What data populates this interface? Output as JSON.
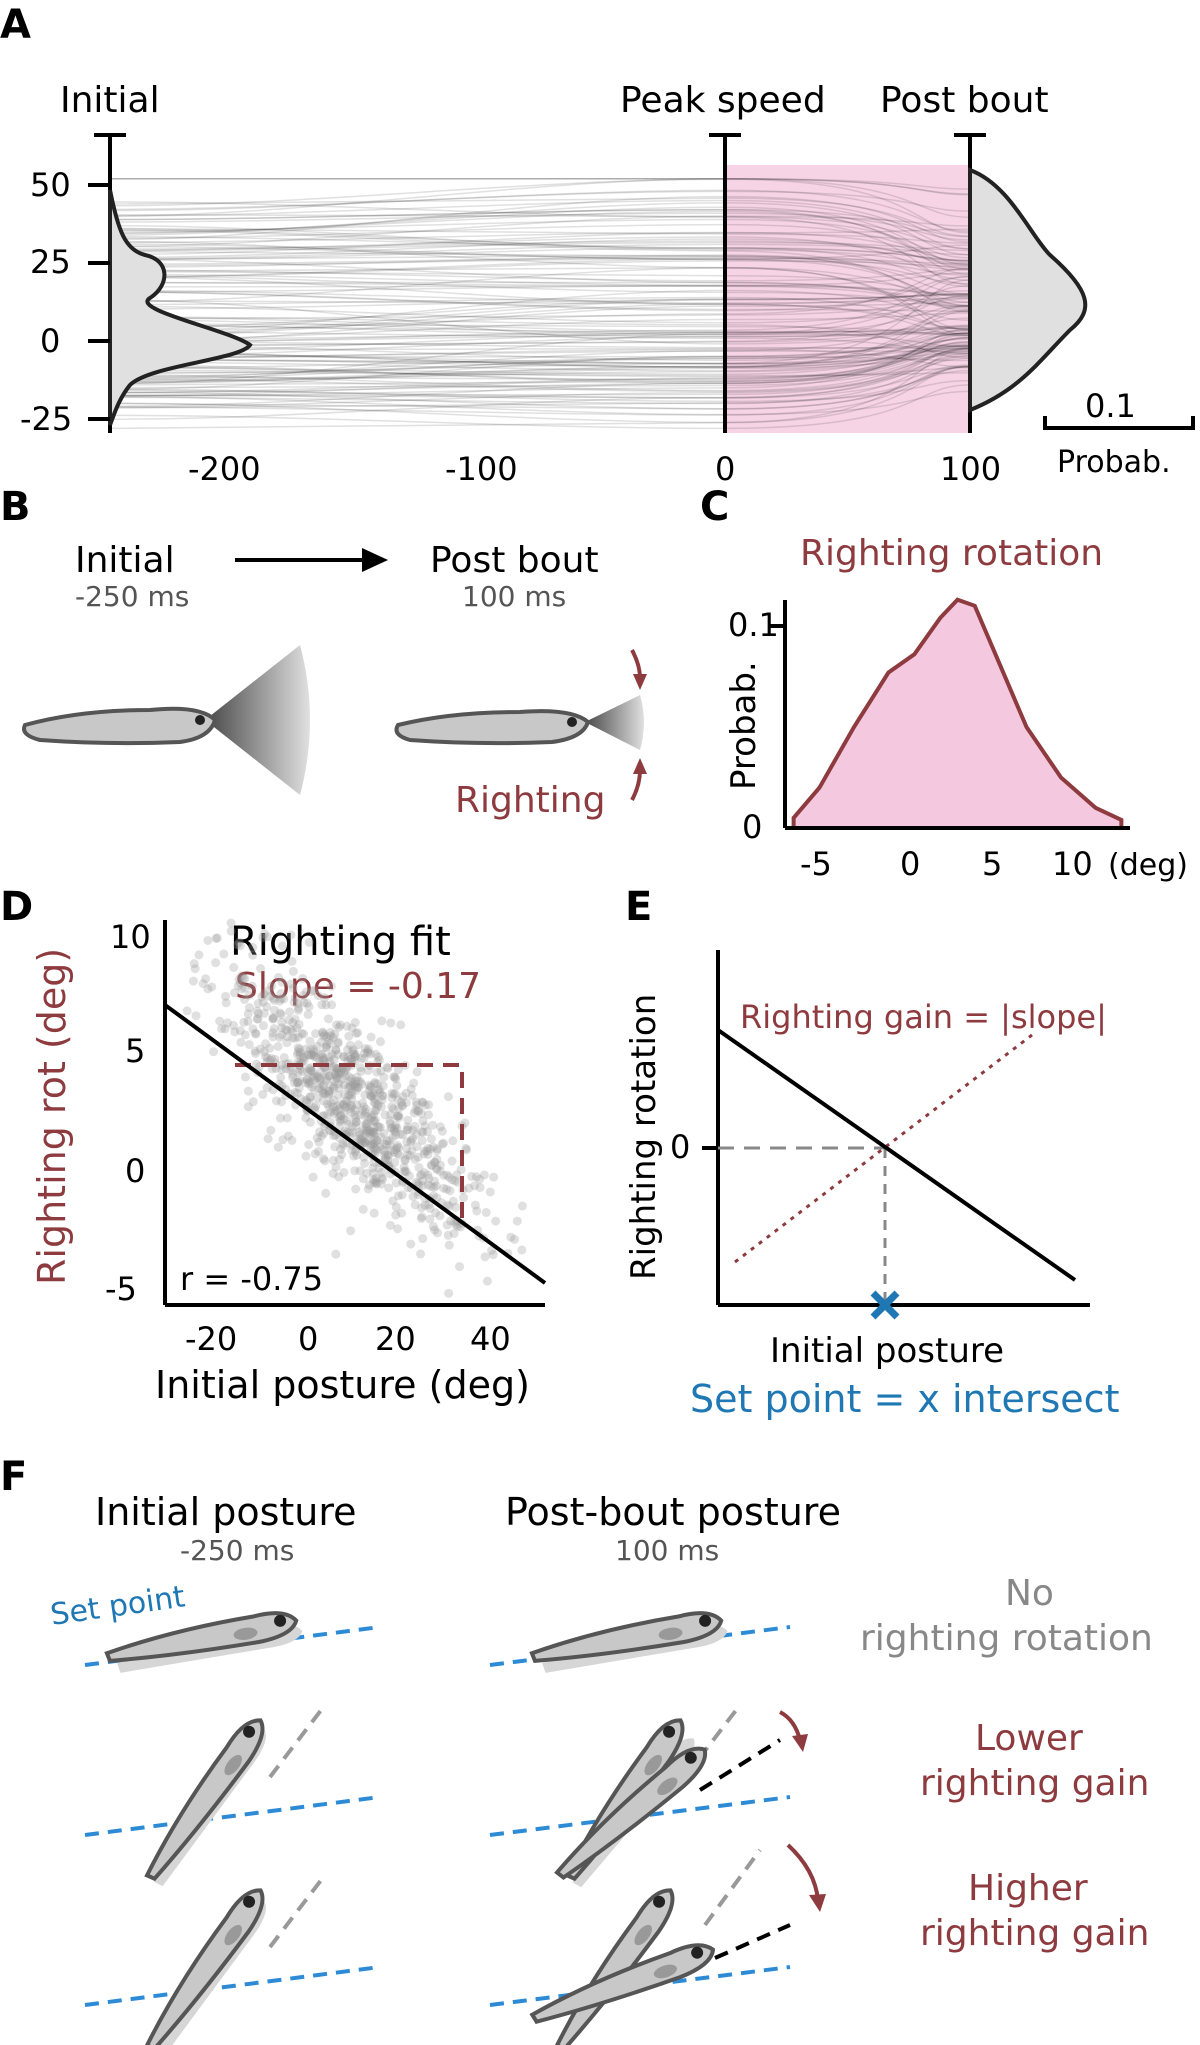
{
  "colors": {
    "red": "#8e3b3f",
    "pink": "#f4c9e0",
    "blue": "#2d8bd6",
    "grey": "#808080"
  },
  "panelA": {
    "letter": "A",
    "labels": {
      "initial": "Initial",
      "peak": "Peak speed",
      "post": "Post bout"
    },
    "yticks": [
      "50",
      "25",
      "0",
      "-25"
    ],
    "xticks": [
      "-200",
      "-100",
      "0",
      "100"
    ],
    "scale_value": "0.1",
    "scale_label": "Probab."
  },
  "panelB": {
    "letter": "B",
    "initial": "Initial",
    "initial_time": "-250 ms",
    "post": "Post bout",
    "post_time": "100 ms",
    "righting": "Righting"
  },
  "panelC": {
    "letter": "C",
    "title": "Righting rotation",
    "ylabel": "Probab.",
    "yticks": [
      "0.1",
      "0"
    ],
    "xticks": [
      "-5",
      "0",
      "5",
      "10"
    ],
    "xunit": "(deg)"
  },
  "panelD": {
    "letter": "D",
    "title": "Righting fit",
    "slope": "Slope = -0.17",
    "r": "r = -0.75",
    "ylabel": "Righting rot (deg)",
    "xlabel": "Initial posture (deg)",
    "yticks": [
      "10",
      "5",
      "0",
      "-5"
    ],
    "xticks": [
      "-20",
      "0",
      "20",
      "40"
    ]
  },
  "panelE": {
    "letter": "E",
    "gain": "Righting gain = |slope|",
    "ylabel": "Righting rotation",
    "ytick": "0",
    "xlabel": "Initial posture",
    "setpoint": "Set point = x intersect"
  },
  "panelF": {
    "letter": "F",
    "initial": "Initial posture",
    "initial_time": "-250 ms",
    "post": "Post-bout posture",
    "post_time": "100 ms",
    "setpoint": "Set point",
    "row1_a": "No",
    "row1_b": "righting rotation",
    "row2_a": "Lower",
    "row2_b": "righting gain",
    "row3_a": "Higher",
    "row3_b": "righting gain"
  },
  "chart_data": [
    {
      "type": "line",
      "panel": "A",
      "x": [
        -250,
        -200,
        -100,
        0,
        100
      ],
      "xlim": [
        -250,
        100
      ],
      "ylim": [
        -30,
        55
      ],
      "description_series": "posture trajectories over time (ms)"
    },
    {
      "type": "area",
      "panel": "C",
      "x": [
        -6.5,
        -5,
        -3,
        -1,
        0.5,
        2,
        3,
        4,
        5,
        7,
        9,
        11,
        12.5
      ],
      "y": [
        0.005,
        0.02,
        0.05,
        0.077,
        0.086,
        0.104,
        0.113,
        0.11,
        0.09,
        0.05,
        0.025,
        0.01,
        0.004
      ],
      "ylim": [
        0,
        0.12
      ],
      "xlim": [
        -7,
        13
      ]
    },
    {
      "type": "scatter",
      "panel": "D",
      "xlim": [
        -28,
        50
      ],
      "ylim": [
        -6,
        10
      ],
      "fit_slope": -0.17,
      "r": -0.75
    }
  ]
}
